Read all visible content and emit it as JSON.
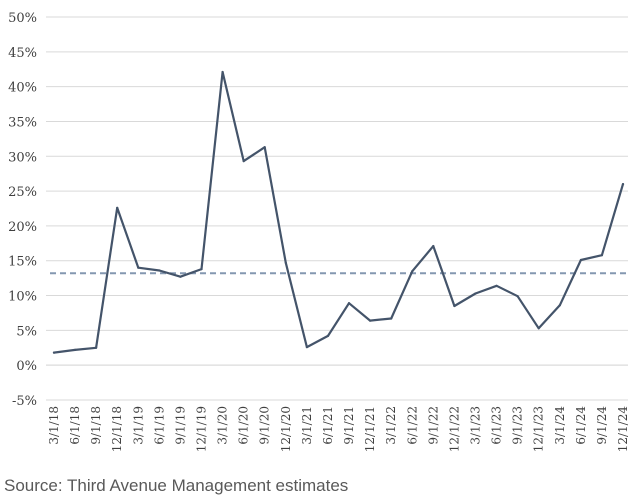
{
  "chart_data": {
    "type": "line",
    "title": "",
    "xlabel": "",
    "ylabel": "",
    "ylim": [
      -0.05,
      0.5
    ],
    "yticks": [
      "-5%",
      "0%",
      "5%",
      "10%",
      "15%",
      "20%",
      "25%",
      "30%",
      "35%",
      "40%",
      "45%",
      "50%"
    ],
    "ytick_values": [
      -0.05,
      0,
      0.05,
      0.1,
      0.15,
      0.2,
      0.25,
      0.3,
      0.35,
      0.4,
      0.45,
      0.5
    ],
    "grid": "horizontal",
    "legend": "none",
    "categories": [
      "3/1/18",
      "6/1/18",
      "9/1/18",
      "12/1/18",
      "3/1/19",
      "6/1/19",
      "9/1/19",
      "12/1/19",
      "3/1/20",
      "6/1/20",
      "9/1/20",
      "12/1/20",
      "3/1/21",
      "6/1/21",
      "9/1/21",
      "12/1/21",
      "3/1/22",
      "6/1/22",
      "9/1/22",
      "12/1/22",
      "3/1/23",
      "6/1/23",
      "9/1/23",
      "12/1/23",
      "3/1/24",
      "6/1/24",
      "9/1/24",
      "12/1/24"
    ],
    "series": [
      {
        "values": [
          0.018,
          0.022,
          0.025,
          0.226,
          0.14,
          0.136,
          0.127,
          0.138,
          0.421,
          0.293,
          0.313,
          0.147,
          0.026,
          0.042,
          0.089,
          0.064,
          0.067,
          0.135,
          0.171,
          0.085,
          0.103,
          0.114,
          0.099,
          0.053,
          0.086,
          0.151,
          0.158,
          0.26
        ],
        "color": "#44546a"
      }
    ],
    "reference_lines": [
      {
        "value": 0.132,
        "style": "dashed",
        "color": "#8497b0"
      }
    ],
    "axis_color": "#d9d9d9",
    "gridline_color": "#d9d9d9"
  },
  "footer": {
    "source": "Source: Third Avenue Management estimates"
  }
}
